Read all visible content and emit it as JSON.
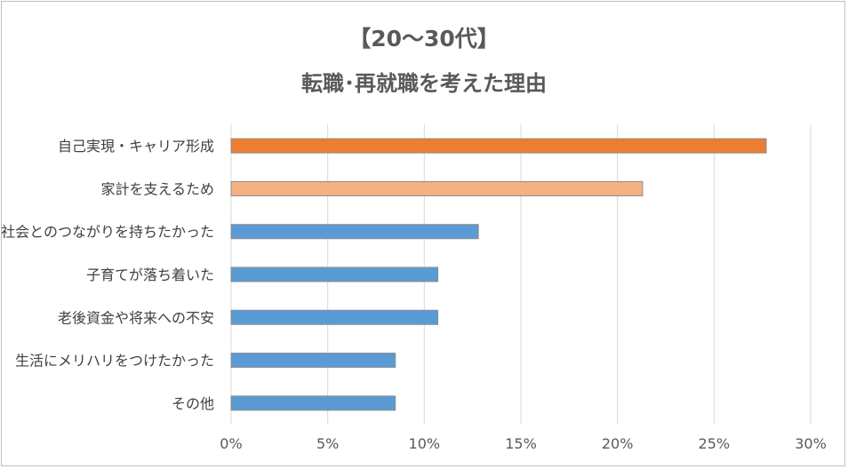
{
  "chart_data": {
    "type": "bar",
    "orientation": "horizontal",
    "title": "【20～30代】",
    "subtitle": "転職･再就職を考えた理由",
    "categories": [
      "自己実現・キャリア形成",
      "家計を支えるため",
      "社会とのつながりを持ちたかった",
      "子育てが落ち着いた",
      "老後資金や将来への不安",
      "生活にメリハリをつけたかった",
      "その他"
    ],
    "values": [
      27.7,
      21.3,
      12.8,
      10.7,
      10.7,
      8.5,
      8.5
    ],
    "bar_colors": [
      "#ED7D31",
      "#F4B183",
      "#5B9BD5",
      "#5B9BD5",
      "#5B9BD5",
      "#5B9BD5",
      "#5B9BD5"
    ],
    "xlim": [
      0,
      30
    ],
    "xticks": [
      "0%",
      "5%",
      "10%",
      "15%",
      "20%",
      "25%",
      "30%"
    ],
    "xlabel": "",
    "ylabel": "",
    "grid": true,
    "legend": "none"
  }
}
